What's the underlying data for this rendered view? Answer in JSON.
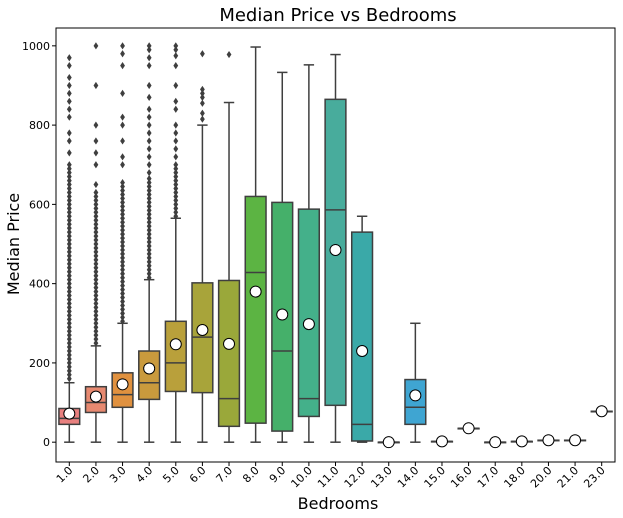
{
  "chart_data": {
    "type": "box",
    "title": "Median Price vs Bedrooms",
    "xlabel": "Bedrooms",
    "ylabel": "Median Price",
    "ylim": [
      -50,
      1045
    ],
    "yticks": [
      0,
      200,
      400,
      600,
      800,
      1000
    ],
    "grid": false,
    "legend": "none",
    "mean_marker": "white circle",
    "categories": [
      "1.0",
      "2.0",
      "3.0",
      "4.0",
      "5.0",
      "6.0",
      "7.0",
      "8.0",
      "9.0",
      "10.0",
      "11.0",
      "12.0",
      "13.0",
      "14.0",
      "15.0",
      "16.0",
      "17.0",
      "18.0",
      "20.0",
      "21.0",
      "23.0"
    ],
    "boxes": [
      {
        "color": "#e8807f",
        "q1": 45,
        "median": 60,
        "q3": 85,
        "whislo": 0,
        "whishi": 150,
        "mean": 72,
        "fliers": [
          160,
          170,
          180,
          190,
          200,
          210,
          220,
          230,
          240,
          250,
          260,
          270,
          280,
          290,
          300,
          310,
          320,
          330,
          340,
          350,
          360,
          370,
          380,
          390,
          400,
          410,
          420,
          430,
          440,
          450,
          460,
          470,
          480,
          490,
          500,
          510,
          520,
          530,
          540,
          550,
          560,
          570,
          580,
          590,
          600,
          610,
          620,
          630,
          640,
          650,
          660,
          670,
          680,
          690,
          700,
          730,
          760,
          780,
          820,
          840,
          860,
          880,
          900,
          920,
          950,
          970
        ]
      },
      {
        "color": "#e78970",
        "q1": 75,
        "median": 100,
        "q3": 140,
        "whislo": 0,
        "whishi": 243,
        "mean": 115,
        "fliers": [
          250,
          260,
          270,
          280,
          290,
          300,
          310,
          320,
          330,
          340,
          350,
          360,
          370,
          380,
          390,
          400,
          410,
          420,
          430,
          440,
          450,
          460,
          470,
          480,
          490,
          500,
          510,
          520,
          530,
          540,
          550,
          560,
          570,
          580,
          590,
          600,
          610,
          620,
          630,
          650,
          700,
          730,
          760,
          800,
          900,
          1000
        ]
      },
      {
        "color": "#e0913f",
        "q1": 88,
        "median": 120,
        "q3": 175,
        "whislo": 0,
        "whishi": 300,
        "mean": 146,
        "fliers": [
          305,
          315,
          325,
          335,
          345,
          355,
          365,
          375,
          385,
          395,
          405,
          415,
          425,
          435,
          445,
          455,
          465,
          475,
          485,
          495,
          505,
          515,
          525,
          535,
          545,
          555,
          565,
          575,
          585,
          595,
          605,
          615,
          625,
          635,
          645,
          655,
          700,
          720,
          760,
          800,
          820,
          880,
          950,
          980,
          1000
        ]
      },
      {
        "color": "#c99a3d",
        "q1": 108,
        "median": 150,
        "q3": 230,
        "whislo": 0,
        "whishi": 410,
        "mean": 186,
        "fliers": [
          415,
          425,
          435,
          445,
          455,
          465,
          475,
          485,
          495,
          505,
          515,
          525,
          535,
          545,
          555,
          565,
          575,
          585,
          595,
          605,
          615,
          625,
          635,
          645,
          655,
          665,
          680,
          700,
          720,
          740,
          760,
          780,
          800,
          820,
          840,
          870,
          900,
          950,
          970,
          990,
          1000
        ]
      },
      {
        "color": "#b9a03b",
        "q1": 128,
        "median": 200,
        "q3": 305,
        "whislo": 0,
        "whishi": 565,
        "mean": 247,
        "fliers": [
          570,
          580,
          590,
          600,
          610,
          620,
          630,
          640,
          650,
          660,
          670,
          680,
          690,
          700,
          720,
          740,
          760,
          780,
          800,
          840,
          860,
          900,
          950,
          975,
          990,
          1000
        ]
      },
      {
        "color": "#a8a43a",
        "q1": 125,
        "median": 265,
        "q3": 402,
        "whislo": 0,
        "whishi": 800,
        "mean": 283,
        "fliers": [
          815,
          830,
          855,
          870,
          880,
          890,
          980
        ]
      },
      {
        "color": "#9aa83a",
        "q1": 40,
        "median": 110,
        "q3": 408,
        "whislo": 0,
        "whishi": 857,
        "mean": 248,
        "fliers": [
          978
        ]
      },
      {
        "color": "#5cb443",
        "q1": 48,
        "median": 428,
        "q3": 620,
        "whislo": 0,
        "whishi": 997,
        "mean": 380,
        "fliers": []
      },
      {
        "color": "#45b06a",
        "q1": 28,
        "median": 230,
        "q3": 605,
        "whislo": 0,
        "whishi": 933,
        "mean": 322,
        "fliers": []
      },
      {
        "color": "#44b08a",
        "q1": 65,
        "median": 110,
        "q3": 588,
        "whislo": 0,
        "whishi": 952,
        "mean": 298,
        "fliers": []
      },
      {
        "color": "#48ac9c",
        "q1": 93,
        "median": 586,
        "q3": 865,
        "whislo": 0,
        "whishi": 978,
        "mean": 485,
        "fliers": []
      },
      {
        "color": "#3aa9a8",
        "q1": 3,
        "median": 45,
        "q3": 530,
        "whislo": 0,
        "whishi": 570,
        "mean": 230,
        "fliers": []
      },
      {
        "color": "#3ca7b8",
        "q1": 0,
        "median": 0,
        "q3": 0,
        "whislo": 0,
        "whishi": 0,
        "mean": 0,
        "fliers": []
      },
      {
        "color": "#3fa5d2",
        "q1": 45,
        "median": 88,
        "q3": 158,
        "whislo": 0,
        "whishi": 300,
        "mean": 118,
        "fliers": []
      },
      {
        "color": "#5ca0e0",
        "q1": 2,
        "median": 2,
        "q3": 2,
        "whislo": 2,
        "whishi": 2,
        "mean": 2,
        "fliers": []
      },
      {
        "color": "#8a95e8",
        "q1": 35,
        "median": 35,
        "q3": 35,
        "whislo": 35,
        "whishi": 35,
        "mean": 35,
        "fliers": []
      },
      {
        "color": "#a38aea",
        "q1": 0,
        "median": 0,
        "q3": 0,
        "whislo": 0,
        "whishi": 0,
        "mean": 0,
        "fliers": []
      },
      {
        "color": "#b783ea",
        "q1": 2,
        "median": 2,
        "q3": 2,
        "whislo": 2,
        "whishi": 2,
        "mean": 2,
        "fliers": []
      },
      {
        "color": "#c97ee6",
        "q1": 5,
        "median": 5,
        "q3": 5,
        "whislo": 5,
        "whishi": 5,
        "mean": 5,
        "fliers": []
      },
      {
        "color": "#d87ad8",
        "q1": 5,
        "median": 5,
        "q3": 5,
        "whislo": 5,
        "whishi": 5,
        "mean": 5,
        "fliers": []
      },
      {
        "color": "#e479c8",
        "q1": 78,
        "median": 78,
        "q3": 78,
        "whislo": 78,
        "whishi": 78,
        "mean": 78,
        "fliers": []
      }
    ]
  }
}
